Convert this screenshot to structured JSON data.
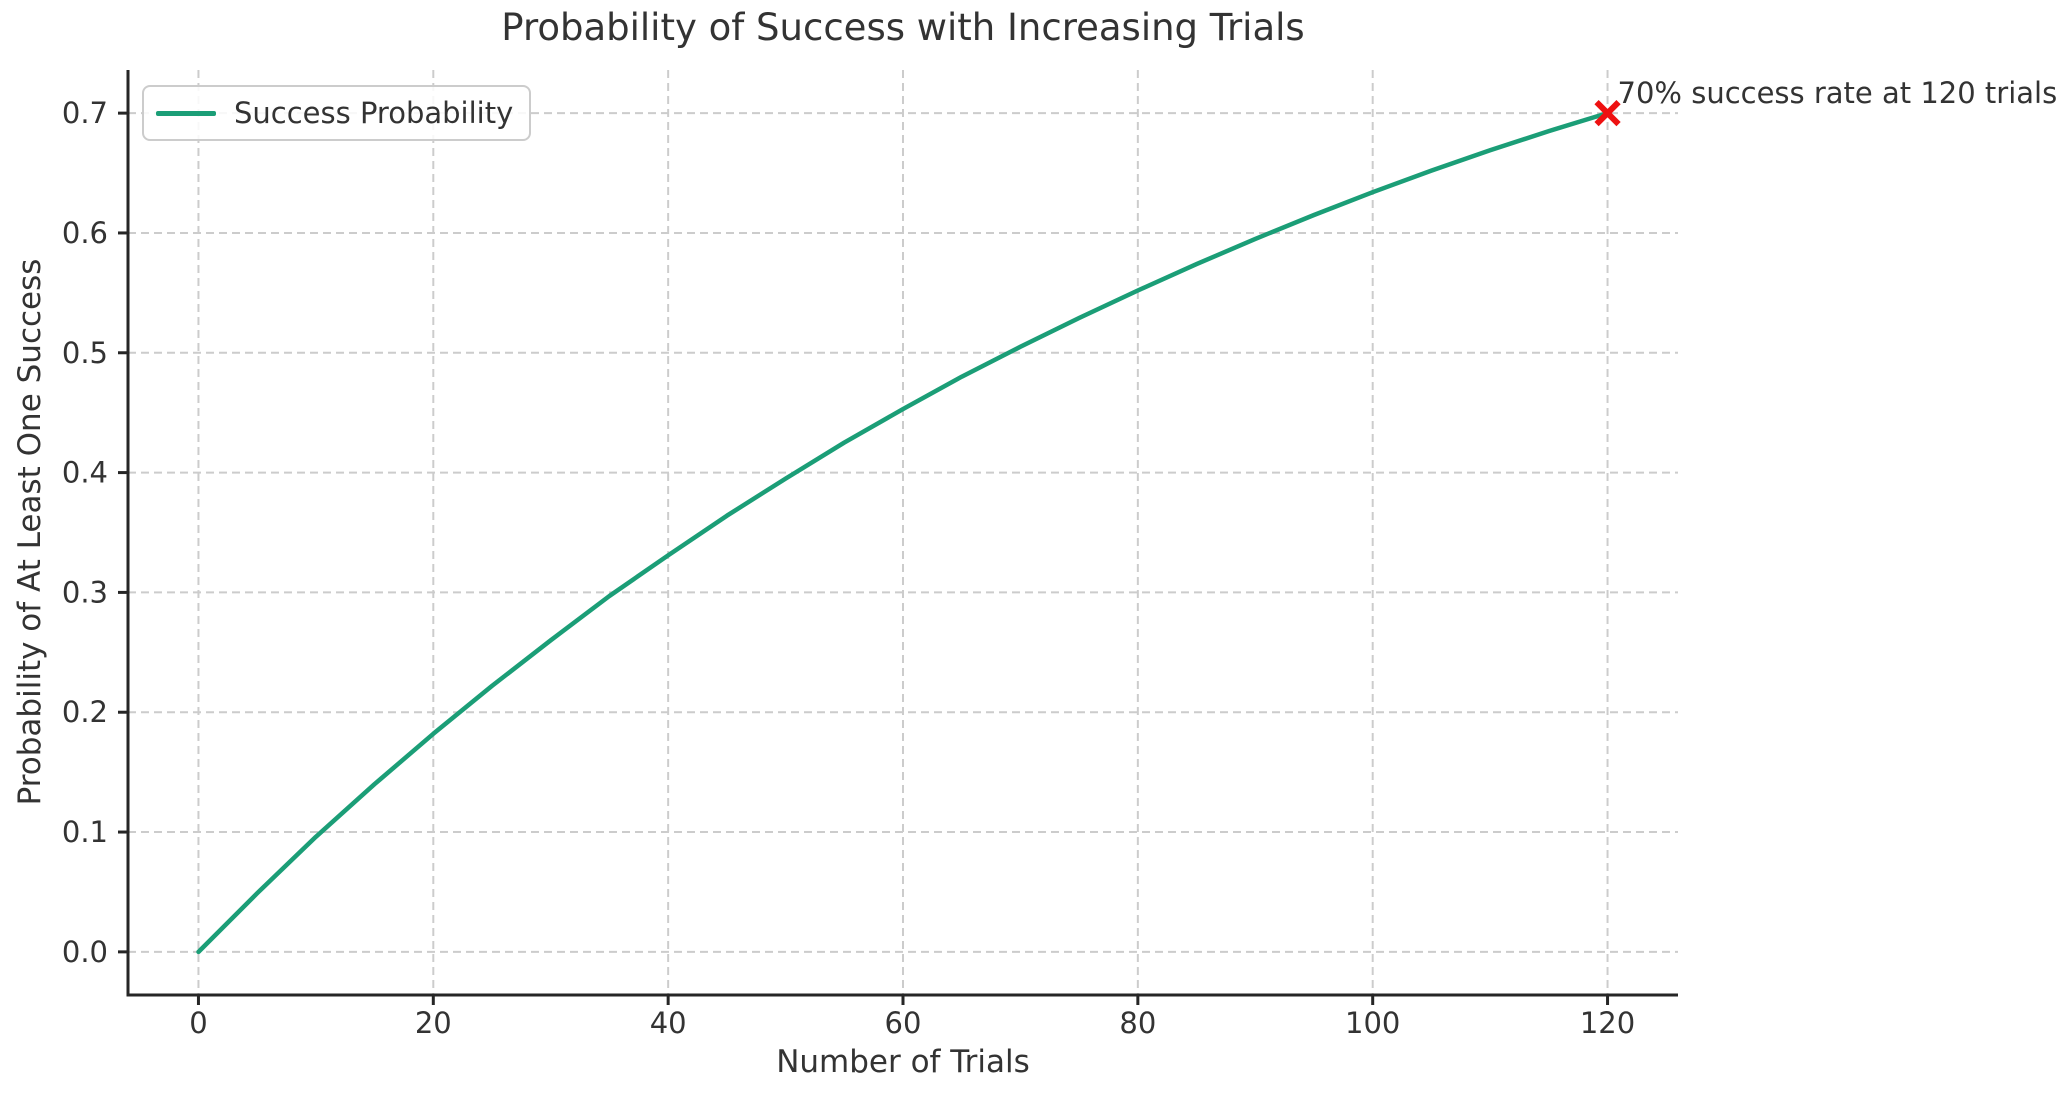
{
  "chart_data": {
    "type": "line",
    "title": "Probability of Success with Increasing Trials",
    "xlabel": "Number of Trials",
    "ylabel": "Probability of At Least One Success",
    "xlim": [
      -6,
      126
    ],
    "ylim": [
      -0.036,
      0.736
    ],
    "xticks": [
      0,
      20,
      40,
      60,
      80,
      100,
      120
    ],
    "ytick_labels": [
      "0.0",
      "0.1",
      "0.2",
      "0.3",
      "0.4",
      "0.5",
      "0.6",
      "0.7"
    ],
    "yticks": [
      0,
      0.1,
      0.2,
      0.3,
      0.4,
      0.5,
      0.6,
      0.7
    ],
    "grid": true,
    "grid_style": "dashed",
    "legend_position": "upper-left",
    "series": [
      {
        "name": "Success Probability",
        "color": "#1b9e77",
        "x": [
          0,
          5,
          10,
          15,
          20,
          25,
          30,
          35,
          40,
          45,
          50,
          55,
          60,
          65,
          70,
          75,
          80,
          85,
          90,
          95,
          100,
          105,
          110,
          115,
          120
        ],
        "y": [
          0,
          0.049,
          0.096,
          0.14,
          0.182,
          0.222,
          0.26,
          0.297,
          0.331,
          0.364,
          0.395,
          0.425,
          0.453,
          0.48,
          0.505,
          0.529,
          0.552,
          0.574,
          0.595,
          0.615,
          0.634,
          0.652,
          0.669,
          0.685,
          0.7
        ]
      }
    ],
    "annotation": {
      "text": "70% success rate at 120 trials",
      "x": 120,
      "y": 0.7,
      "marker": "x",
      "marker_color": "#ee1111"
    },
    "colors": {
      "grid": "#cccccc",
      "spine": "#262626",
      "text": "#333333",
      "background": "#ffffff"
    }
  }
}
